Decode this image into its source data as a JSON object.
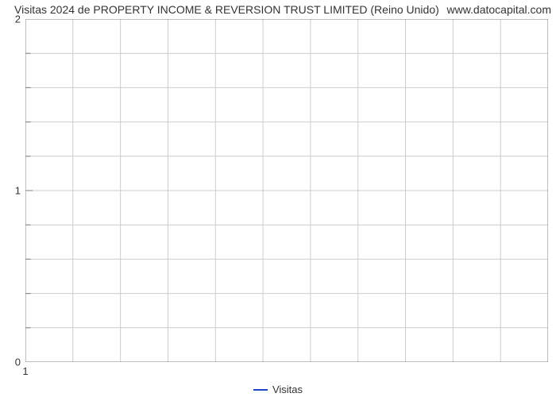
{
  "chart": {
    "type": "line",
    "title_left": "Visitas 2024 de PROPERTY INCOME & REVERSION TRUST LIMITED (Reino Unido)",
    "title_right": "www.datocapital.com",
    "title_fontsize": 14,
    "title_color": "#333333",
    "background_color": "#ffffff",
    "plot_border_color": "#7f7f7f",
    "plot_border_width": 1,
    "grid_color": "#cccccc",
    "grid_width": 1,
    "x": {
      "lim": [
        1,
        12
      ],
      "ticks_major": [
        1
      ],
      "ticks_minor_count": 11,
      "tick_color": "#7f7f7f",
      "label_fontsize": 13
    },
    "y": {
      "lim": [
        0,
        2
      ],
      "ticks_major": [
        0,
        1,
        2
      ],
      "ticks_minor_per_interval": 4,
      "tick_color": "#7f7f7f",
      "label_fontsize": 13
    },
    "series": [
      {
        "name": "Visitas",
        "color": "#2045c6",
        "line_width": 2,
        "x": [],
        "y": []
      }
    ],
    "legend": {
      "position": "bottom-center",
      "fontsize": 13,
      "text_color": "#333333"
    }
  }
}
